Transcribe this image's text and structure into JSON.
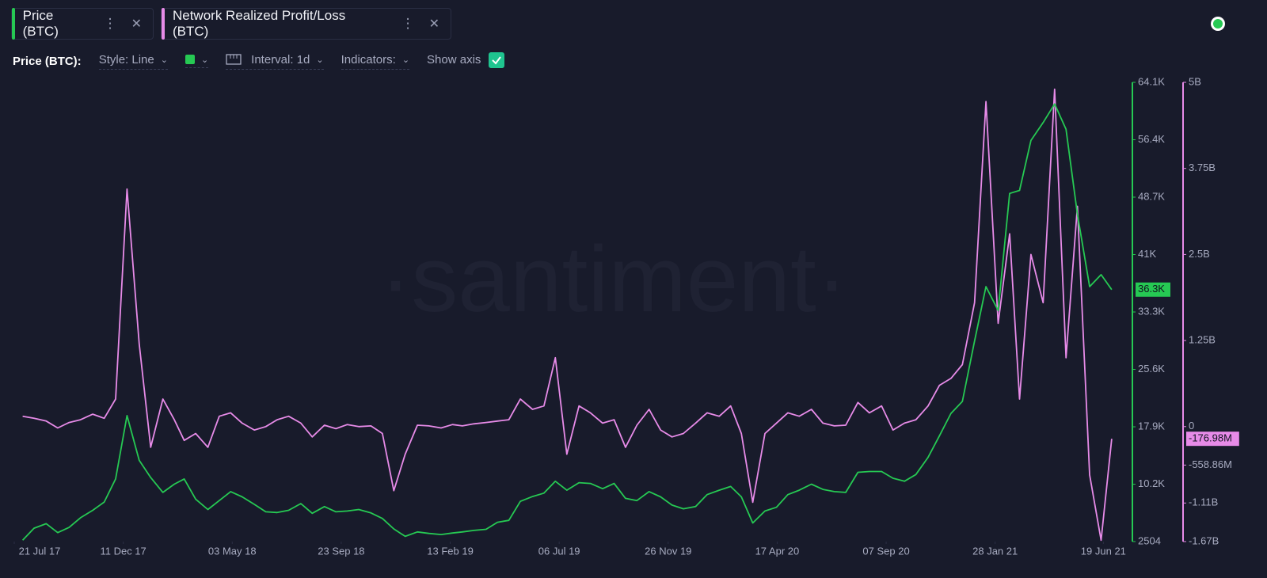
{
  "toolbar": {
    "label": "Price (BTC):",
    "style": "Style: Line",
    "interval": "Interval: 1d",
    "indicators": "Indicators:",
    "show_axis": "Show axis"
  },
  "chart_data": {
    "type": "line",
    "watermark": "·santiment·",
    "x": [
      "2017-08-01",
      "2017-08-16",
      "2017-09-01",
      "2017-09-16",
      "2017-10-01",
      "2017-10-16",
      "2017-11-01",
      "2017-11-16",
      "2017-12-01",
      "2017-12-16",
      "2018-01-01",
      "2018-01-16",
      "2018-02-01",
      "2018-02-16",
      "2018-03-01",
      "2018-03-16",
      "2018-04-01",
      "2018-04-16",
      "2018-05-01",
      "2018-05-16",
      "2018-06-01",
      "2018-06-16",
      "2018-07-01",
      "2018-07-16",
      "2018-08-01",
      "2018-08-16",
      "2018-09-01",
      "2018-09-16",
      "2018-10-01",
      "2018-10-16",
      "2018-11-01",
      "2018-11-16",
      "2018-12-01",
      "2018-12-16",
      "2019-01-01",
      "2019-01-16",
      "2019-02-01",
      "2019-02-16",
      "2019-03-01",
      "2019-03-16",
      "2019-04-01",
      "2019-04-16",
      "2019-05-01",
      "2019-05-16",
      "2019-06-01",
      "2019-06-16",
      "2019-07-01",
      "2019-07-16",
      "2019-08-01",
      "2019-08-16",
      "2019-09-01",
      "2019-09-16",
      "2019-10-01",
      "2019-10-16",
      "2019-11-01",
      "2019-11-16",
      "2019-12-01",
      "2019-12-16",
      "2020-01-01",
      "2020-01-16",
      "2020-02-01",
      "2020-02-16",
      "2020-03-01",
      "2020-03-16",
      "2020-04-01",
      "2020-04-16",
      "2020-05-01",
      "2020-05-16",
      "2020-06-01",
      "2020-06-16",
      "2020-07-01",
      "2020-07-16",
      "2020-08-01",
      "2020-08-16",
      "2020-09-01",
      "2020-09-16",
      "2020-10-01",
      "2020-10-16",
      "2020-11-01",
      "2020-11-16",
      "2020-12-01",
      "2020-12-16",
      "2021-01-01",
      "2021-01-16",
      "2021-02-01",
      "2021-02-16",
      "2021-03-01",
      "2021-03-16",
      "2021-04-01",
      "2021-04-16",
      "2021-05-01",
      "2021-05-16",
      "2021-06-01",
      "2021-06-16",
      "2021-06-30"
    ],
    "xlim": [
      "2017-07-21",
      "2021-07-25"
    ],
    "xticks": [
      {
        "value": "2017-07-21",
        "label": "21 Jul 17"
      },
      {
        "value": "2017-12-11",
        "label": "11 Dec 17"
      },
      {
        "value": "2018-05-03",
        "label": "03 May 18"
      },
      {
        "value": "2018-09-23",
        "label": "23 Sep 18"
      },
      {
        "value": "2019-02-13",
        "label": "13 Feb 19"
      },
      {
        "value": "2019-07-06",
        "label": "06 Jul 19"
      },
      {
        "value": "2019-11-26",
        "label": "26 Nov 19"
      },
      {
        "value": "2020-04-17",
        "label": "17 Apr 20"
      },
      {
        "value": "2020-09-07",
        "label": "07 Sep 20"
      },
      {
        "value": "2021-01-28",
        "label": "28 Jan 21"
      },
      {
        "value": "2021-06-19",
        "label": "19 Jun 21"
      }
    ],
    "ylim": [
      2504,
      64100
    ],
    "yticks": [
      2504,
      {
        "value": 10200,
        "label": "10.2K"
      },
      {
        "value": 17900,
        "label": "17.9K"
      },
      {
        "value": 25600,
        "label": "25.6K"
      },
      {
        "value": 33300,
        "label": "33.3K"
      },
      {
        "value": 41000,
        "label": "41K"
      },
      {
        "value": 48700,
        "label": "48.7K"
      },
      {
        "value": 56400,
        "label": "56.4K"
      },
      {
        "value": 64100,
        "label": "64.1K"
      }
    ],
    "y2lim": [
      -1670000000,
      5000000000
    ],
    "y2ticks": [
      {
        "value": -1670000000,
        "label": "-1.67B"
      },
      {
        "value": -1110000000,
        "label": "-1.11B"
      },
      {
        "value": -558860000,
        "label": "-558.86M"
      },
      0,
      {
        "value": 1250000000,
        "label": "1.25B"
      },
      {
        "value": 2500000000,
        "label": "2.5B"
      },
      {
        "value": 3750000000,
        "label": "3.75B"
      },
      {
        "value": 5000000000,
        "label": "5B"
      }
    ],
    "series": [
      {
        "name": "Price (BTC)",
        "color": "#26c953",
        "values": [
          2700,
          4300,
          4900,
          3700,
          4400,
          5700,
          6700,
          7800,
          10900,
          19400,
          13400,
          11100,
          9100,
          10200,
          10900,
          8200,
          6800,
          8000,
          9200,
          8500,
          7500,
          6500,
          6400,
          6700,
          7600,
          6300,
          7200,
          6500,
          6600,
          6800,
          6350,
          5600,
          4200,
          3200,
          3800,
          3600,
          3450,
          3650,
          3800,
          4000,
          4150,
          5100,
          5350,
          7900,
          8550,
          9000,
          10600,
          9400,
          10400,
          10300,
          9600,
          10300,
          8300,
          8000,
          9200,
          8500,
          7400,
          6900,
          7200,
          8800,
          9400,
          9900,
          8500,
          5000,
          6600,
          7100,
          8800,
          9400,
          10200,
          9500,
          9200,
          9100,
          11800,
          11900,
          11900,
          11000,
          10600,
          11500,
          13800,
          16700,
          19700,
          21300,
          29400,
          36700,
          33500,
          49200,
          49600,
          56300,
          58700,
          61200,
          57800,
          46400,
          36700,
          38300,
          36300
        ],
        "value_labels": [
          null,
          null,
          null,
          null,
          null,
          null,
          null,
          null,
          null,
          null,
          null,
          null,
          null,
          null,
          null,
          null,
          null,
          null,
          null,
          null,
          null,
          null,
          null,
          null,
          null,
          null,
          null,
          null,
          null,
          null,
          null,
          null,
          null,
          null,
          null,
          null,
          null,
          null,
          null,
          null,
          null,
          null,
          null,
          null,
          null,
          null,
          null,
          null,
          null,
          null,
          null,
          null,
          null,
          null,
          null,
          null,
          null,
          null,
          null,
          null,
          null,
          null,
          null,
          null,
          null,
          null,
          null,
          null,
          null,
          null,
          null,
          null,
          null,
          null,
          null,
          null,
          null,
          null,
          null,
          null,
          null,
          null,
          null,
          null,
          null,
          null,
          null,
          null,
          null,
          null,
          null,
          null,
          null,
          null,
          "36.3K"
        ]
      },
      {
        "name": "Network Realized Profit/Loss (BTC)",
        "color": "#e78be8",
        "axis": "y2",
        "values": [
          150000000,
          120000000,
          80000000,
          -20000000,
          60000000,
          100000000,
          180000000,
          120000000,
          400000000,
          3450000000,
          1200000000,
          -300000000,
          400000000,
          100000000,
          -200000000,
          -100000000,
          -300000000,
          150000000,
          200000000,
          50000000,
          -50000000,
          0,
          100000000,
          150000000,
          50000000,
          -150000000,
          20000000,
          -30000000,
          30000000,
          0,
          10000000,
          -100000000,
          -930000000,
          -400000000,
          20000000,
          10000000,
          -20000000,
          30000000,
          10000000,
          40000000,
          60000000,
          80000000,
          100000000,
          400000000,
          250000000,
          300000000,
          1000000000,
          -400000000,
          300000000,
          200000000,
          50000000,
          100000000,
          -300000000,
          20000000,
          250000000,
          -50000000,
          -150000000,
          -100000000,
          50000000,
          200000000,
          150000000,
          300000000,
          -100000000,
          -1100000000,
          -100000000,
          50000000,
          200000000,
          150000000,
          250000000,
          50000000,
          10000000,
          20000000,
          350000000,
          200000000,
          300000000,
          -50000000,
          50000000,
          100000000,
          300000000,
          600000000,
          700000000,
          900000000,
          1800000000,
          4720000000,
          1500000000,
          2800000000,
          400000000,
          2500000000,
          1800000000,
          4900000000,
          1000000000,
          3200000000,
          -700000000,
          -1650000000,
          -176980000
        ],
        "value_labels": [
          null,
          null,
          null,
          null,
          null,
          null,
          null,
          null,
          null,
          null,
          null,
          null,
          null,
          null,
          null,
          null,
          null,
          null,
          null,
          null,
          null,
          null,
          null,
          null,
          null,
          null,
          null,
          null,
          null,
          null,
          null,
          null,
          null,
          null,
          null,
          null,
          null,
          null,
          null,
          null,
          null,
          null,
          null,
          null,
          null,
          null,
          null,
          null,
          null,
          null,
          null,
          null,
          null,
          null,
          null,
          null,
          null,
          null,
          null,
          null,
          null,
          null,
          null,
          null,
          null,
          null,
          null,
          null,
          null,
          null,
          null,
          null,
          null,
          null,
          null,
          null,
          null,
          null,
          null,
          null,
          null,
          null,
          null,
          null,
          null,
          null,
          null,
          null,
          null,
          null,
          null,
          null,
          null,
          null,
          "-176.98M"
        ]
      }
    ]
  }
}
